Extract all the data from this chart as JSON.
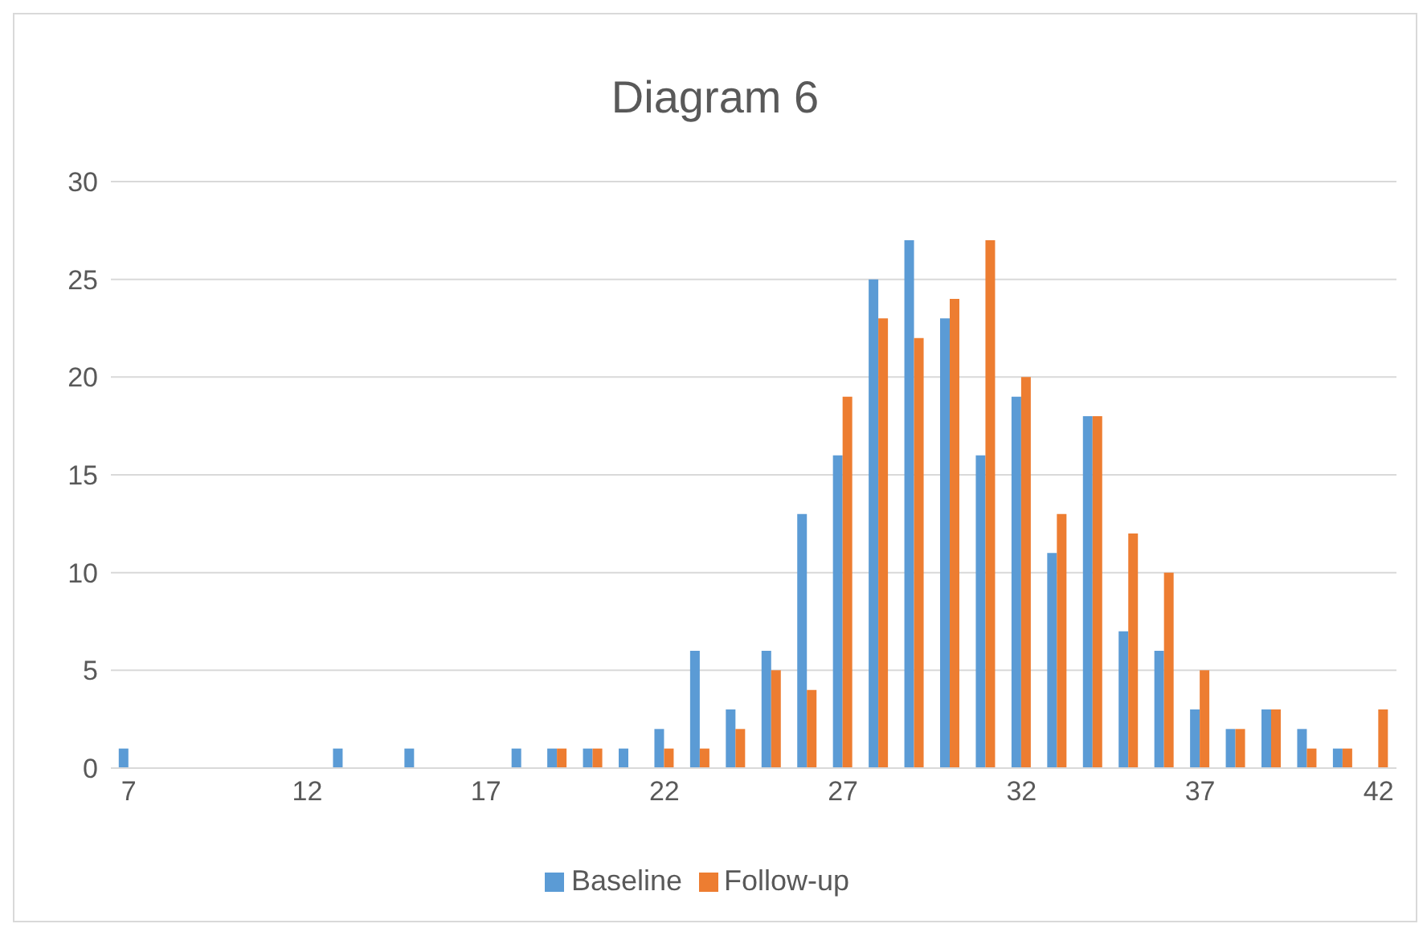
{
  "chart_data": {
    "type": "bar",
    "title": "Diagram 6",
    "categories": [
      "7",
      null,
      null,
      null,
      null,
      "12",
      null,
      null,
      null,
      null,
      "17",
      null,
      null,
      null,
      null,
      "22",
      null,
      null,
      null,
      null,
      "27",
      null,
      null,
      null,
      null,
      "32",
      null,
      null,
      null,
      null,
      "37",
      null,
      null,
      null,
      null,
      "42"
    ],
    "series": [
      {
        "name": "Baseline",
        "color": "#5b9bd5",
        "values": [
          1,
          0,
          0,
          0,
          0,
          0,
          1,
          0,
          1,
          0,
          0,
          1,
          1,
          1,
          1,
          2,
          6,
          3,
          6,
          13,
          16,
          25,
          27,
          23,
          16,
          19,
          11,
          18,
          7,
          6,
          3,
          2,
          3,
          2,
          1,
          0
        ]
      },
      {
        "name": "Follow-up",
        "color": "#ed7d31",
        "values": [
          0,
          0,
          0,
          0,
          0,
          0,
          0,
          0,
          0,
          0,
          0,
          0,
          1,
          1,
          0,
          1,
          1,
          2,
          5,
          4,
          19,
          23,
          22,
          24,
          27,
          20,
          13,
          18,
          12,
          10,
          5,
          2,
          3,
          1,
          1,
          3
        ]
      }
    ],
    "ylim": [
      0,
      30
    ],
    "yticks": [
      0,
      5,
      10,
      15,
      20,
      25,
      30
    ],
    "grid": "y",
    "legend": "bottom"
  }
}
